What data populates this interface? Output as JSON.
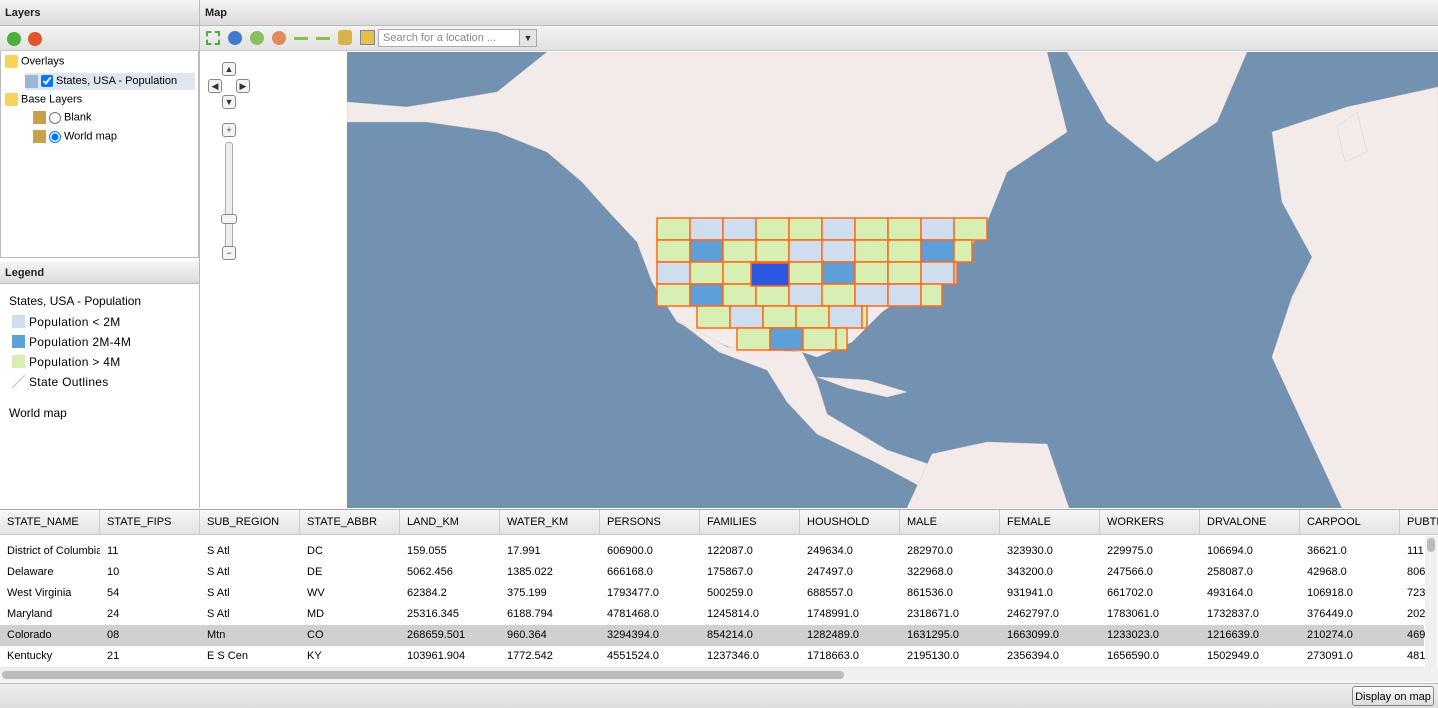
{
  "layers_panel": {
    "title": "Layers",
    "tree": [
      {
        "label": "Overlays",
        "children": [
          {
            "label": "States, USA - Population"
          }
        ]
      },
      {
        "label": "Base Layers",
        "children": [
          {
            "label": "Blank"
          },
          {
            "label": "World map"
          }
        ]
      }
    ]
  },
  "legend_panel": {
    "title": "Legend",
    "layer_title": "States, USA - Population",
    "items": [
      {
        "label": "Population < 2M",
        "color": "#cfdeee"
      },
      {
        "label": "Population 2M-4M",
        "color": "#5d9fd8"
      },
      {
        "label": "Population > 4M",
        "color": "#d8efb4"
      },
      {
        "label": "State Outlines"
      }
    ],
    "base_layer": "World map"
  },
  "map_panel": {
    "title": "Map",
    "search_placeholder": "Search for a location ..."
  },
  "table": {
    "selected_row": 4,
    "columns": [
      "STATE_NAME",
      "STATE_FIPS",
      "SUB_REGION",
      "STATE_ABBR",
      "LAND_KM",
      "WATER_KM",
      "PERSONS",
      "FAMILIES",
      "HOUSHOLD",
      "MALE",
      "FEMALE",
      "WORKERS",
      "DRVALONE",
      "CARPOOL",
      "PUBTI"
    ],
    "rows": [
      [
        "District of Columbia",
        "11",
        "S Atl",
        "DC",
        "159.055",
        "17.991",
        "606900.0",
        "122087.0",
        "249634.0",
        "282970.0",
        "323930.0",
        "229975.0",
        "106694.0",
        "36621.0",
        "111"
      ],
      [
        "Delaware",
        "10",
        "S Atl",
        "DE",
        "5062.456",
        "1385.022",
        "666168.0",
        "175867.0",
        "247497.0",
        "322968.0",
        "343200.0",
        "247566.0",
        "258087.0",
        "42968.0",
        "806"
      ],
      [
        "West Virginia",
        "54",
        "S Atl",
        "WV",
        "62384.2",
        "375.199",
        "1793477.0",
        "500259.0",
        "688557.0",
        "861536.0",
        "931941.0",
        "661702.0",
        "493164.0",
        "106918.0",
        "723"
      ],
      [
        "Maryland",
        "24",
        "S Atl",
        "MD",
        "25316.345",
        "6188.794",
        "4781468.0",
        "1245814.0",
        "1748991.0",
        "2318671.0",
        "2462797.0",
        "1783061.0",
        "1732837.0",
        "376449.0",
        "202"
      ],
      [
        "Colorado",
        "08",
        "Mtn",
        "CO",
        "268659.501",
        "960.364",
        "3294394.0",
        "854214.0",
        "1282489.0",
        "1631295.0",
        "1663099.0",
        "1233023.0",
        "1216639.0",
        "210274.0",
        "469"
      ],
      [
        "Kentucky",
        "21",
        "E S Cen",
        "KY",
        "103961.904",
        "1772.542",
        "4551524.0",
        "1237346.0",
        "1718663.0",
        "2195130.0",
        "2356394.0",
        "1656590.0",
        "1502949.0",
        "273091.0",
        "481"
      ]
    ]
  },
  "footer": {
    "button": "Display on map"
  }
}
